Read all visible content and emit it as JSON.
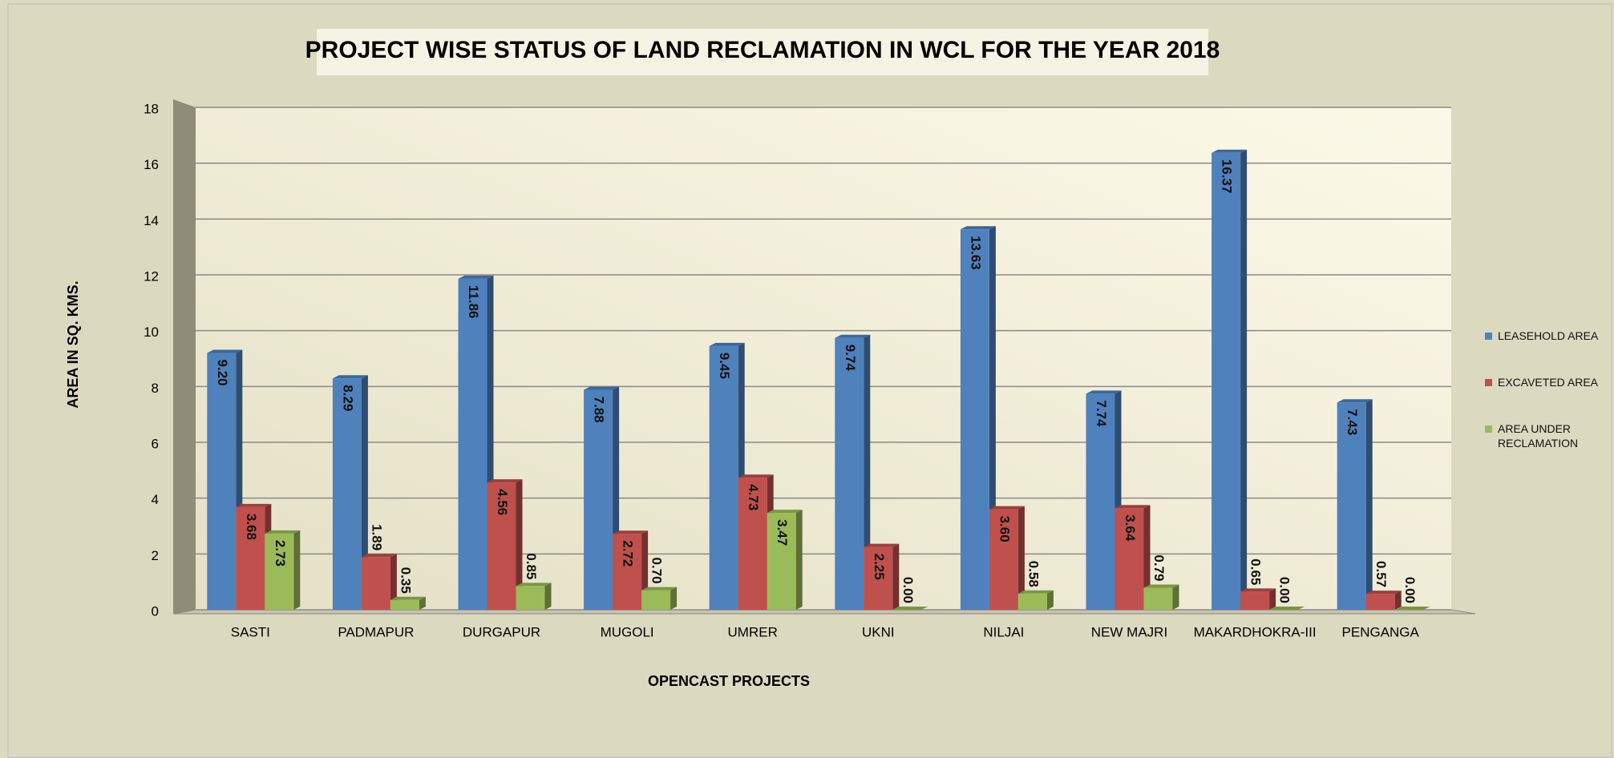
{
  "chart_data": {
    "type": "bar",
    "title": "PROJECT WISE STATUS OF LAND RECLAMATION IN WCL FOR THE YEAR 2018",
    "x_label": "OPENCAST PROJECTS",
    "y_label": "AREA IN SQ. KMS.",
    "categories": [
      "SASTI",
      "PADMAPUR",
      "DURGAPUR",
      "MUGOLI",
      "UMRER",
      "UKNI",
      "NILJAI",
      "NEW MAJRI",
      "MAKARDHOKRA-III",
      "PENGANGA"
    ],
    "series": [
      {
        "name": "LEASEHOLD AREA",
        "color": "#4f81bd",
        "values": [
          9.2,
          8.29,
          11.86,
          7.88,
          9.45,
          9.74,
          13.63,
          7.74,
          16.37,
          7.43
        ],
        "value_labels": [
          "9.20",
          "8.29",
          "11.86",
          "7.88",
          "9.45",
          "9.74",
          "13.63",
          "7.74",
          "16.37",
          "7.43"
        ]
      },
      {
        "name": "EXCAVETED AREA",
        "color": "#c0504d",
        "values": [
          3.68,
          1.89,
          4.56,
          2.72,
          4.73,
          2.25,
          3.6,
          3.64,
          0.65,
          0.57
        ],
        "value_labels": [
          "3.68",
          "1.89",
          "4.56",
          "2.72",
          "4.73",
          "2.25",
          "3.60",
          "3.64",
          "0.65",
          "0.57"
        ]
      },
      {
        "name": "AREA UNDER RECLAMATION",
        "color": "#9bbb59",
        "values": [
          2.73,
          0.35,
          0.85,
          0.7,
          3.47,
          0,
          0.58,
          0.79,
          0,
          0
        ],
        "value_labels": [
          "2.73",
          "0.35",
          "0.85",
          "0.70",
          "3.47",
          "0.00",
          "0.58",
          "0.79",
          "0.00",
          "0.00"
        ]
      }
    ],
    "ylim": [
      0,
      18
    ],
    "yticks": [
      0,
      2,
      4,
      6,
      8,
      10,
      12,
      14,
      16,
      18
    ],
    "grid": true,
    "legend": "right"
  }
}
